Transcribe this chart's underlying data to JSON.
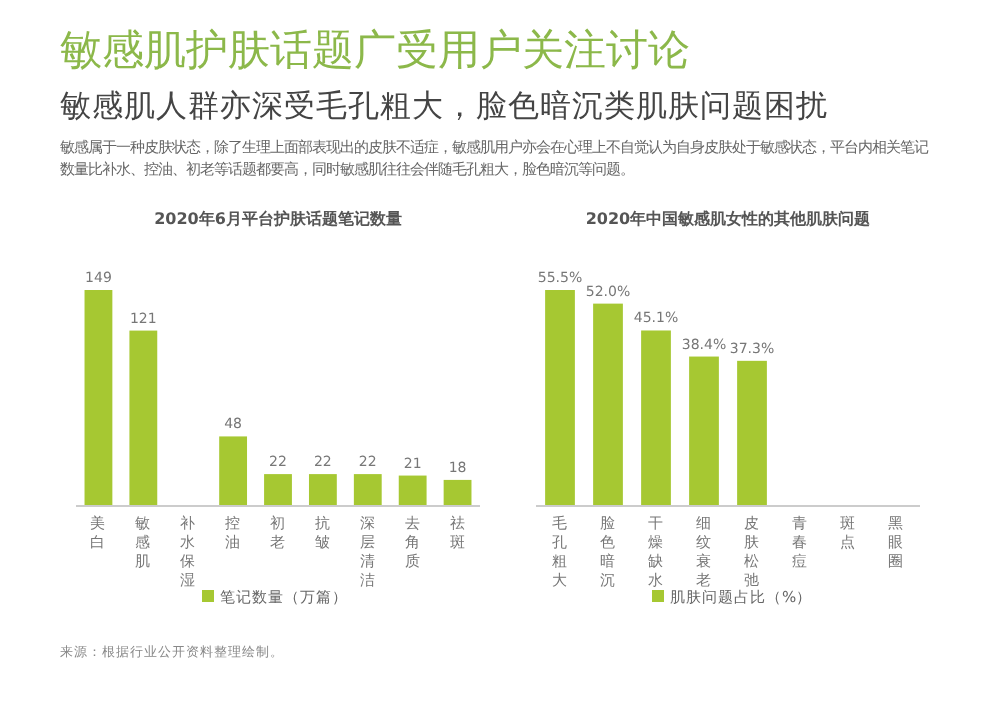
{
  "chart_data": [
    {
      "type": "other",
      "title": "敏感肌护肤话题广受用户关注讨论",
      "subtitle": "敏感肌人群亦深受毛孔粗大，脸色暗沉类肌肤问题困扰",
      "annotations": [
        "敏感属于一种皮肤状态，除了生理上面部表现出的皮肤不适症，敏感肌用户亦会在心理上不自觉认为自身皮肤处于敏感状态，平台内相关笔记数量比补水、控油、初老等话题都要高，同时敏感肌往往会伴随毛孔粗大，脸色暗沉等问题。",
        "来源：根据行业公开资料整理绘制。"
      ]
    },
    {
      "type": "bar",
      "title": "2020年6月平台护肤话题笔记数量",
      "categories": [
        "美白",
        "敏感肌",
        "补水保湿",
        "控油",
        "初老",
        "抗皱",
        "深层清洁",
        "去角质",
        "祛斑"
      ],
      "relative": false,
      "series": [
        {
          "name": "笔记数量（万篇）",
          "color": "#a6c832",
          "values": [
            149,
            121,
            null,
            48,
            22,
            22,
            22,
            21,
            18
          ]
        }
      ],
      "data_labels": true,
      "legend": "bottom"
    },
    {
      "type": "bar",
      "title": "2020年中国敏感肌女性的其他肌肤问题",
      "categories": [
        "毛孔粗大",
        "脸色暗沉",
        "干燥缺水",
        "细纹衰老",
        "皮肤松弛",
        "青春痘",
        "斑点",
        "黑眼圈"
      ],
      "series": [
        {
          "name": "肌肤问题占比（%）",
          "color": "#a6c832",
          "values": [
            55.5,
            52.0,
            45.1,
            38.4,
            37.3,
            null,
            null,
            null
          ],
          "value_labels": [
            "55.5%",
            "52.0%",
            "45.1%",
            "38.4%",
            "37.3%",
            null,
            null,
            null
          ]
        }
      ],
      "legend": "bottom"
    }
  ]
}
